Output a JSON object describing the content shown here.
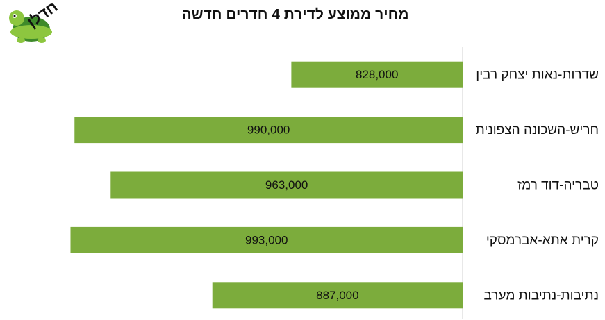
{
  "logo": {
    "text": "חדלן"
  },
  "chart_data": {
    "type": "bar",
    "orientation": "horizontal",
    "title": "מחיר ממוצע לדירת 4 חדרים חדשה",
    "categories": [
      "שדרות-נאות יצחק רבין",
      "חריש-השכונה הצפונית",
      "טבריה-דוד רמז",
      "קרית אתא-אברמסקי",
      "נתיבות-נתיבות מערב"
    ],
    "values": [
      828000,
      990000,
      963000,
      993000,
      887000
    ],
    "value_labels": [
      "828,000",
      "990,000",
      "963,000",
      "993,000",
      "887,000"
    ],
    "color": "#7cac3c",
    "xlim": [
      700000,
      1000000
    ]
  }
}
